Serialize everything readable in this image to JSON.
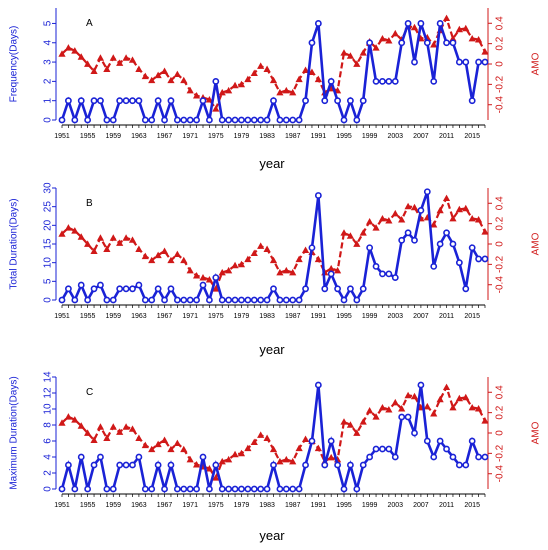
{
  "chart_data": [
    {
      "type": "line",
      "panel_label": "A",
      "xlabel": "year",
      "ylabel_left": "Frequency(Days)",
      "ylabel_right": "AMO",
      "left_ticks": [
        "0",
        "1",
        "2",
        "3",
        "4",
        "5"
      ],
      "right_ticks": [
        "-0.4",
        "-0.2",
        "0",
        "0.2",
        "0.4"
      ],
      "ylim_left": [
        0,
        5.8
      ],
      "ylim_right": [
        -0.55,
        0.55
      ],
      "x_tick_labels": [
        "1951",
        "1955",
        "1959",
        "1963",
        "1967",
        "1971",
        "1975",
        "1979",
        "1983",
        "1987",
        "1991",
        "1995",
        "1999",
        "2003",
        "2007",
        "2011",
        "2015"
      ],
      "left_color": "#1a22d6",
      "right_color": "#d01818",
      "left_series": [
        0,
        1,
        0,
        1,
        0,
        1,
        1,
        0,
        0,
        1,
        1,
        1,
        1,
        0,
        0,
        1,
        0,
        1,
        0,
        0,
        0,
        0,
        1,
        0,
        2,
        0,
        0,
        0,
        0,
        0,
        0,
        0,
        0,
        1,
        0,
        0,
        0,
        0,
        1,
        4,
        5,
        1,
        2,
        1,
        0,
        1,
        0,
        1,
        4,
        2,
        2,
        2,
        2,
        4,
        5,
        3,
        5,
        4,
        2,
        5,
        4,
        4,
        3,
        3,
        1,
        3,
        3
      ],
      "right_series": [
        0.1,
        0.16,
        0.13,
        0.07,
        0.0,
        -0.07,
        0.06,
        -0.05,
        0.06,
        0.01,
        0.06,
        0.04,
        -0.05,
        -0.12,
        -0.16,
        -0.11,
        -0.07,
        -0.16,
        -0.1,
        -0.16,
        -0.26,
        -0.31,
        -0.33,
        -0.35,
        -0.44,
        -0.28,
        -0.26,
        -0.21,
        -0.2,
        -0.15,
        -0.09,
        -0.02,
        -0.05,
        -0.16,
        -0.28,
        -0.26,
        -0.28,
        -0.15,
        -0.06,
        -0.08,
        -0.15,
        -0.28,
        -0.24,
        -0.26,
        0.11,
        0.08,
        0.0,
        0.11,
        0.22,
        0.16,
        0.25,
        0.23,
        0.3,
        0.24,
        0.37,
        0.36,
        0.25,
        0.26,
        0.19,
        0.33,
        0.45,
        0.25,
        0.34,
        0.35,
        0.25,
        0.24,
        0.12
      ]
    },
    {
      "type": "line",
      "panel_label": "B",
      "xlabel": "year",
      "ylabel_left": "Total Duration(Days)",
      "ylabel_right": "AMO",
      "left_ticks": [
        "0",
        "5",
        "10",
        "15",
        "20",
        "25",
        "30"
      ],
      "right_ticks": [
        "-0.4",
        "-0.2",
        "0",
        "0.2",
        "0.4"
      ],
      "ylim_left": [
        0,
        30
      ],
      "ylim_right": [
        -0.55,
        0.55
      ],
      "x_tick_labels": [
        "1951",
        "1955",
        "1959",
        "1963",
        "1967",
        "1971",
        "1975",
        "1979",
        "1983",
        "1987",
        "1991",
        "1995",
        "1999",
        "2003",
        "2007",
        "2011",
        "2015"
      ],
      "left_color": "#1a22d6",
      "right_color": "#d01818",
      "left_series": [
        0,
        3,
        0,
        4,
        0,
        3,
        4,
        0,
        0,
        3,
        3,
        3,
        4,
        0,
        0,
        3,
        0,
        3,
        0,
        0,
        0,
        0,
        4,
        0,
        6,
        0,
        0,
        0,
        0,
        0,
        0,
        0,
        0,
        3,
        0,
        0,
        0,
        0,
        3,
        14,
        28,
        3,
        7,
        3,
        0,
        3,
        0,
        3,
        14,
        9,
        7,
        7,
        6,
        16,
        18,
        16,
        24,
        29,
        9,
        15,
        18,
        15,
        10,
        3,
        14,
        11,
        11
      ],
      "right_series": [
        0.1,
        0.16,
        0.13,
        0.07,
        0.0,
        -0.07,
        0.06,
        -0.05,
        0.06,
        0.01,
        0.06,
        0.04,
        -0.05,
        -0.12,
        -0.16,
        -0.11,
        -0.07,
        -0.16,
        -0.1,
        -0.16,
        -0.26,
        -0.31,
        -0.33,
        -0.35,
        -0.44,
        -0.28,
        -0.26,
        -0.21,
        -0.2,
        -0.15,
        -0.09,
        -0.02,
        -0.05,
        -0.16,
        -0.28,
        -0.26,
        -0.28,
        -0.15,
        -0.06,
        -0.08,
        -0.15,
        -0.28,
        -0.24,
        -0.26,
        0.11,
        0.08,
        0.0,
        0.11,
        0.22,
        0.16,
        0.25,
        0.23,
        0.3,
        0.24,
        0.37,
        0.36,
        0.25,
        0.26,
        0.19,
        0.33,
        0.45,
        0.25,
        0.34,
        0.35,
        0.25,
        0.24,
        0.12
      ]
    },
    {
      "type": "line",
      "panel_label": "C",
      "xlabel": "year",
      "ylabel_left": "Maximum Duration(Days)",
      "ylabel_right": "AMO",
      "left_ticks": [
        "0",
        "2",
        "4",
        "6",
        "8",
        "10",
        "12",
        "14"
      ],
      "right_ticks": [
        "-0.4",
        "-0.2",
        "0",
        "0.2",
        "0.4"
      ],
      "ylim_left": [
        0,
        14
      ],
      "ylim_right": [
        -0.55,
        0.55
      ],
      "x_tick_labels": [
        "1951",
        "1955",
        "1959",
        "1963",
        "1967",
        "1971",
        "1975",
        "1979",
        "1983",
        "1987",
        "1991",
        "1995",
        "1999",
        "2003",
        "2007",
        "2011",
        "2015"
      ],
      "left_color": "#1a22d6",
      "right_color": "#d01818",
      "left_series": [
        0,
        3,
        0,
        4,
        0,
        3,
        4,
        0,
        0,
        3,
        3,
        3,
        4,
        0,
        0,
        3,
        0,
        3,
        0,
        0,
        0,
        0,
        4,
        0,
        3,
        0,
        0,
        0,
        0,
        0,
        0,
        0,
        0,
        3,
        0,
        0,
        0,
        0,
        3,
        6,
        13,
        3,
        6,
        3,
        0,
        3,
        0,
        3,
        4,
        5,
        5,
        5,
        4,
        9,
        9,
        7,
        13,
        6,
        4,
        6,
        5,
        4,
        3,
        3,
        6,
        4,
        4
      ],
      "right_series": [
        0.1,
        0.16,
        0.13,
        0.07,
        0.0,
        -0.07,
        0.06,
        -0.05,
        0.06,
        0.01,
        0.06,
        0.04,
        -0.05,
        -0.12,
        -0.16,
        -0.11,
        -0.07,
        -0.16,
        -0.1,
        -0.16,
        -0.26,
        -0.31,
        -0.33,
        -0.35,
        -0.44,
        -0.28,
        -0.26,
        -0.21,
        -0.2,
        -0.15,
        -0.09,
        -0.02,
        -0.05,
        -0.16,
        -0.28,
        -0.26,
        -0.28,
        -0.15,
        -0.06,
        -0.08,
        -0.15,
        -0.28,
        -0.24,
        -0.26,
        0.11,
        0.08,
        0.0,
        0.11,
        0.22,
        0.16,
        0.25,
        0.23,
        0.3,
        0.24,
        0.37,
        0.36,
        0.25,
        0.26,
        0.19,
        0.33,
        0.45,
        0.25,
        0.34,
        0.35,
        0.25,
        0.24,
        0.12
      ]
    }
  ]
}
